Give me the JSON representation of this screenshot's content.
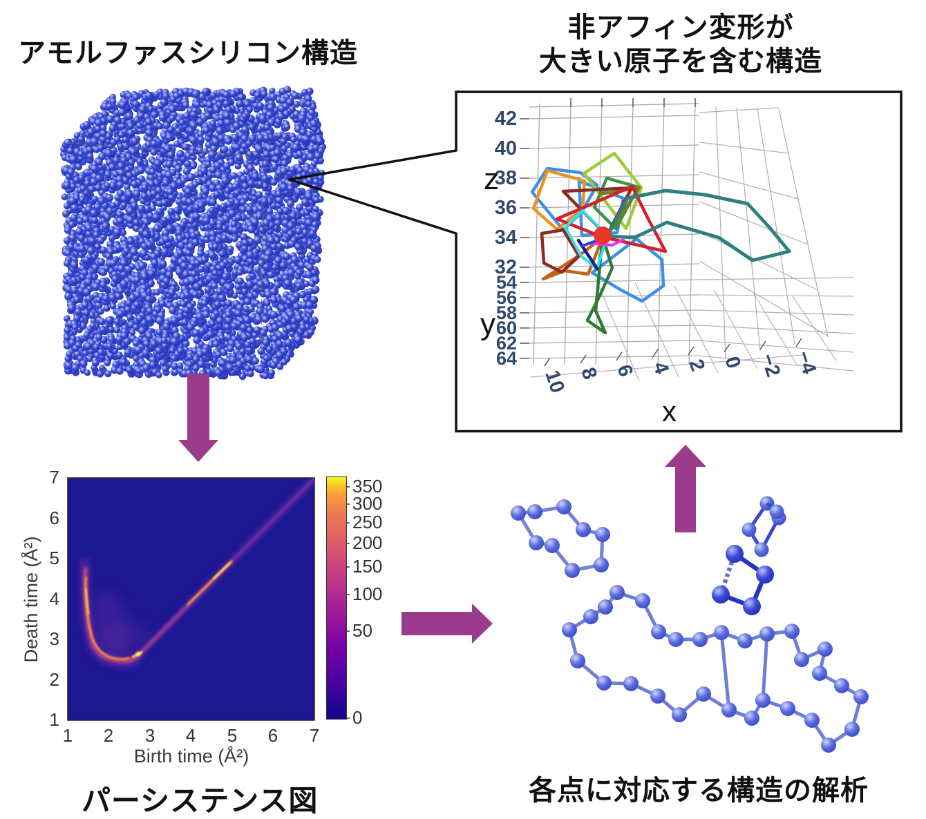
{
  "figure": {
    "title_top_left": "アモルファスシリコン構造",
    "title_top_right_line1": "非アフィン変形が",
    "title_top_right_line2": "大きい原子を含む構造",
    "caption_bottom_left": "パーシステンス図",
    "caption_bottom_right": "各点に対応する構造の解析"
  },
  "colors": {
    "arrow_purple": "#9a3b8c",
    "cube_atom_blue": "#3d4dd4",
    "heatmap_background": "#1d1792",
    "tick_label_blue": "#31486e",
    "red_marker": "#e8362b",
    "box_border": "#111111"
  },
  "chart_data": [
    {
      "type": "heatmap",
      "panel": "persistence-diagram",
      "xlabel": "Birth time (Å²)",
      "ylabel": "Death time (Å²)",
      "x_ticks": [
        1,
        2,
        3,
        4,
        5,
        6,
        7
      ],
      "y_ticks": [
        1,
        2,
        3,
        4,
        5,
        6,
        7
      ],
      "xlim": [
        1,
        7
      ],
      "ylim": [
        1,
        7
      ],
      "colormap": "plasma",
      "grid": false,
      "colorbar_ticks": [
        0,
        50,
        100,
        150,
        200,
        250,
        300,
        350
      ],
      "colorbar_scale": "sqrt",
      "features": [
        {
          "name": "vertical-streak",
          "x": 1.45,
          "y_range": [
            2.6,
            5.0
          ],
          "intensity": "orange core with purple halo"
        },
        {
          "name": "valley-curve",
          "x_range": [
            1.5,
            2.8
          ],
          "y_min": 2.4,
          "hotspot": [
            2.7,
            2.65
          ]
        },
        {
          "name": "diagonal-band",
          "from": [
            2.8,
            2.8
          ],
          "to": [
            7,
            7
          ],
          "bright_segment": [
            [
              3.9,
              3.85
            ],
            [
              5.0,
              4.95
            ]
          ]
        }
      ]
    },
    {
      "type": "line",
      "panel": "non-affine-3d-loops",
      "projection": "3d",
      "xlabel": "x",
      "ylabel": "y",
      "zlabel": "z",
      "x_ticks": [
        "10",
        "8",
        "6",
        "4",
        "2",
        "0",
        "−2",
        "−4"
      ],
      "y_ticks": [
        54,
        56,
        58,
        60,
        62,
        64
      ],
      "z_ticks": [
        42,
        40,
        38,
        36,
        34,
        32
      ],
      "grid": true,
      "legend": false,
      "description": "closed atom-loop trajectories clustered around a central red atom marker",
      "loop_colors": [
        "dodgerblue",
        "yellowgreen",
        "forestgreen",
        "darkgreen",
        "olive",
        "orange",
        "chocolate",
        "maroon",
        "crimson",
        "teal",
        "cyan",
        "navy",
        "magenta"
      ],
      "marker": {
        "shape": "circle",
        "color": "#e8362b"
      }
    }
  ],
  "panels": {
    "cube": {
      "label": "amorphous-silicon-atom-cube",
      "atom_count_hint": "dense packed spheres",
      "atom_color": "#3d4dd4"
    },
    "molecules": {
      "label": "ring-structures",
      "rings": [
        {
          "atoms": 9
        },
        {
          "atoms": 5
        },
        {
          "atoms": 4
        },
        {
          "atoms": 30
        }
      ]
    },
    "arrows": [
      {
        "direction": "down"
      },
      {
        "direction": "right"
      },
      {
        "direction": "up"
      }
    ]
  }
}
